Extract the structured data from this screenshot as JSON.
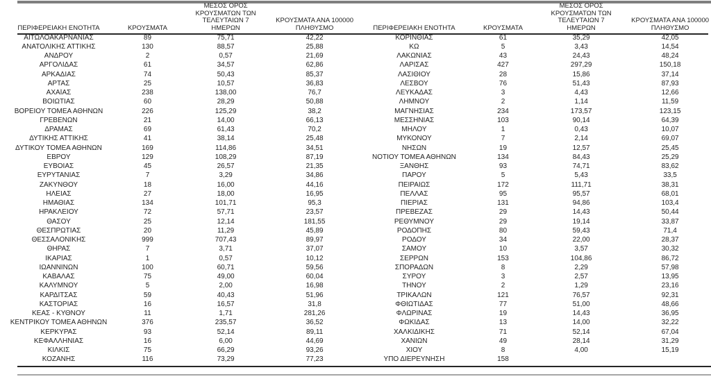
{
  "columns": [
    "ΠΕΡΙΦΕΡΕΙΑΚΗ ΕΝΟΤΗΤΑ",
    "ΚΡΟΥΣΜΑΤΑ",
    "ΜΕΣΟΣ ΟΡΟΣ ΚΡΟΥΣΜΑΤΩΝ ΤΩΝ ΤΕΛΕΥΤΑΙΩΝ 7 ΗΜΕΡΩΝ",
    "ΚΡΟΥΣΜΑΤΑ ΑΝΑ 100000 ΠΛΗΘΥΣΜΟ"
  ],
  "colors": {
    "top_rule": "#7f7f7f",
    "header_rule": "#262626",
    "bottom_dark_rule": "#262626",
    "bottom_gray_rule": "#a6a6a6",
    "text": "#1f1f1f",
    "background": "#ffffff"
  },
  "left_table": {
    "rows": [
      [
        "ΑΙΤΩΛΟΑΚΑΡΝΑΝΙΑΣ",
        "89",
        "75,71",
        "42,22"
      ],
      [
        "ΑΝΑΤΟΛΙΚΗΣ ΑΤΤΙΚΗΣ",
        "130",
        "88,57",
        "25,88"
      ],
      [
        "ΑΝΔΡΟΥ",
        "2",
        "0,57",
        "21,69"
      ],
      [
        "ΑΡΓΟΛΙΔΑΣ",
        "61",
        "34,57",
        "62,86"
      ],
      [
        "ΑΡΚΑΔΙΑΣ",
        "74",
        "50,43",
        "85,37"
      ],
      [
        "ΑΡΤΑΣ",
        "25",
        "10,57",
        "36,83"
      ],
      [
        "ΑΧΑΪΑΣ",
        "238",
        "138,00",
        "76,7"
      ],
      [
        "ΒΟΙΩΤΙΑΣ",
        "60",
        "28,29",
        "50,88"
      ],
      [
        "ΒΟΡΕΙΟΥ ΤΟΜΕΑ ΑΘΗΝΩΝ",
        "226",
        "125,29",
        "38,2"
      ],
      [
        "ΓΡΕΒΕΝΩΝ",
        "21",
        "14,00",
        "66,13"
      ],
      [
        "ΔΡΑΜΑΣ",
        "69",
        "61,43",
        "70,2"
      ],
      [
        "ΔΥΤΙΚΗΣ ΑΤΤΙΚΗΣ",
        "41",
        "38,14",
        "25,48"
      ],
      [
        "ΔΥΤΙΚΟΥ ΤΟΜΕΑ ΑΘΗΝΩΝ",
        "169",
        "114,86",
        "34,51"
      ],
      [
        "ΕΒΡΟΥ",
        "129",
        "108,29",
        "87,19"
      ],
      [
        "ΕΥΒΟΙΑΣ",
        "45",
        "26,57",
        "21,35"
      ],
      [
        "ΕΥΡΥΤΑΝΙΑΣ",
        "7",
        "3,29",
        "34,86"
      ],
      [
        "ΖΑΚΥΝΘΟΥ",
        "18",
        "16,00",
        "44,16"
      ],
      [
        "ΗΛΕΙΑΣ",
        "27",
        "18,00",
        "16,95"
      ],
      [
        "ΗΜΑΘΙΑΣ",
        "134",
        "101,71",
        "95,3"
      ],
      [
        "ΗΡΑΚΛΕΙΟΥ",
        "72",
        "57,71",
        "23,57"
      ],
      [
        "ΘΑΣΟΥ",
        "25",
        "12,14",
        "181,55"
      ],
      [
        "ΘΕΣΠΡΩΤΙΑΣ",
        "20",
        "11,29",
        "45,89"
      ],
      [
        "ΘΕΣΣΑΛΟΝΙΚΗΣ",
        "999",
        "707,43",
        "89,97"
      ],
      [
        "ΘΗΡΑΣ",
        "7",
        "3,71",
        "37,07"
      ],
      [
        "ΙΚΑΡΙΑΣ",
        "1",
        "0,57",
        "10,12"
      ],
      [
        "ΙΩΑΝΝΙΝΩΝ",
        "100",
        "60,71",
        "59,56"
      ],
      [
        "ΚΑΒΑΛΑΣ",
        "75",
        "49,00",
        "60,04"
      ],
      [
        "ΚΑΛΥΜΝΟΥ",
        "5",
        "2,00",
        "16,98"
      ],
      [
        "ΚΑΡΔΙΤΣΑΣ",
        "59",
        "40,43",
        "51,96"
      ],
      [
        "ΚΑΣΤΟΡΙΑΣ",
        "16",
        "16,57",
        "31,8"
      ],
      [
        "ΚΕΑΣ - ΚΥΘΝΟΥ",
        "11",
        "1,71",
        "281,26"
      ],
      [
        "ΚΕΝΤΡΙΚΟΥ ΤΟΜΕΑ ΑΘΗΝΩΝ",
        "376",
        "235,57",
        "36,52"
      ],
      [
        "ΚΕΡΚΥΡΑΣ",
        "93",
        "52,14",
        "89,11"
      ],
      [
        "ΚΕΦΑΛΛΗΝΙΑΣ",
        "16",
        "6,00",
        "44,69"
      ],
      [
        "ΚΙΛΚΙΣ",
        "75",
        "66,29",
        "93,26"
      ],
      [
        "ΚΟΖΑΝΗΣ",
        "116",
        "73,29",
        "77,23"
      ]
    ]
  },
  "right_table": {
    "rows": [
      [
        "ΚΟΡΙΝΘΙΑΣ",
        "61",
        "35,29",
        "42,05"
      ],
      [
        "ΚΩ",
        "5",
        "3,43",
        "14,54"
      ],
      [
        "ΛΑΚΩΝΙΑΣ",
        "43",
        "24,43",
        "48,24"
      ],
      [
        "ΛΑΡΙΣΑΣ",
        "427",
        "297,29",
        "150,18"
      ],
      [
        "ΛΑΣΙΘΙΟΥ",
        "28",
        "15,86",
        "37,14"
      ],
      [
        "ΛΕΣΒΟΥ",
        "76",
        "51,43",
        "87,93"
      ],
      [
        "ΛΕΥΚΑΔΑΣ",
        "3",
        "4,43",
        "12,66"
      ],
      [
        "ΛΗΜΝΟΥ",
        "2",
        "1,14",
        "11,59"
      ],
      [
        "ΜΑΓΝΗΣΙΑΣ",
        "234",
        "173,57",
        "123,15"
      ],
      [
        "ΜΕΣΣΗΝΙΑΣ",
        "103",
        "90,14",
        "64,39"
      ],
      [
        "ΜΗΛΟΥ",
        "1",
        "0,43",
        "10,07"
      ],
      [
        "ΜΥΚΟΝΟΥ",
        "7",
        "2,14",
        "69,07"
      ],
      [
        "ΝΗΣΩΝ",
        "19",
        "12,57",
        "25,45"
      ],
      [
        "ΝΟΤΙΟΥ ΤΟΜΕΑ ΑΘΗΝΩΝ",
        "134",
        "84,43",
        "25,29"
      ],
      [
        "ΞΑΝΘΗΣ",
        "93",
        "74,71",
        "83,62"
      ],
      [
        "ΠΑΡΟΥ",
        "5",
        "5,43",
        "33,5"
      ],
      [
        "ΠΕΙΡΑΙΩΣ",
        "172",
        "111,71",
        "38,31"
      ],
      [
        "ΠΕΛΛΑΣ",
        "95",
        "95,57",
        "68,01"
      ],
      [
        "ΠΙΕΡΙΑΣ",
        "131",
        "94,86",
        "103,4"
      ],
      [
        "ΠΡΕΒΕΖΑΣ",
        "29",
        "14,43",
        "50,44"
      ],
      [
        "ΡΕΘΥΜΝΟΥ",
        "29",
        "19,14",
        "33,87"
      ],
      [
        "ΡΟΔΟΠΗΣ",
        "80",
        "59,43",
        "71,4"
      ],
      [
        "ΡΟΔΟΥ",
        "34",
        "22,00",
        "28,37"
      ],
      [
        "ΣΑΜΟΥ",
        "10",
        "3,57",
        "30,32"
      ],
      [
        "ΣΕΡΡΩΝ",
        "153",
        "104,86",
        "86,72"
      ],
      [
        "ΣΠΟΡΑΔΩΝ",
        "8",
        "2,29",
        "57,98"
      ],
      [
        "ΣΥΡΟΥ",
        "3",
        "2,57",
        "13,95"
      ],
      [
        "ΤΗΝΟΥ",
        "2",
        "1,29",
        "23,16"
      ],
      [
        "ΤΡΙΚΑΛΩΝ",
        "121",
        "76,57",
        "92,31"
      ],
      [
        "ΦΘΙΩΤΙΔΑΣ",
        "77",
        "51,00",
        "48,66"
      ],
      [
        "ΦΛΩΡΙΝΑΣ",
        "19",
        "14,43",
        "36,95"
      ],
      [
        "ΦΩΚΙΔΑΣ",
        "13",
        "14,00",
        "32,22"
      ],
      [
        "ΧΑΛΚΙΔΙΚΗΣ",
        "71",
        "52,14",
        "67,04"
      ],
      [
        "ΧΑΝΙΩΝ",
        "49",
        "28,14",
        "31,29"
      ],
      [
        "ΧΙΟΥ",
        "8",
        "4,00",
        "15,19"
      ],
      [
        "ΥΠΟ ΔΙΕΡΕΥΝΗΣΗ",
        "158",
        "",
        ""
      ]
    ]
  }
}
